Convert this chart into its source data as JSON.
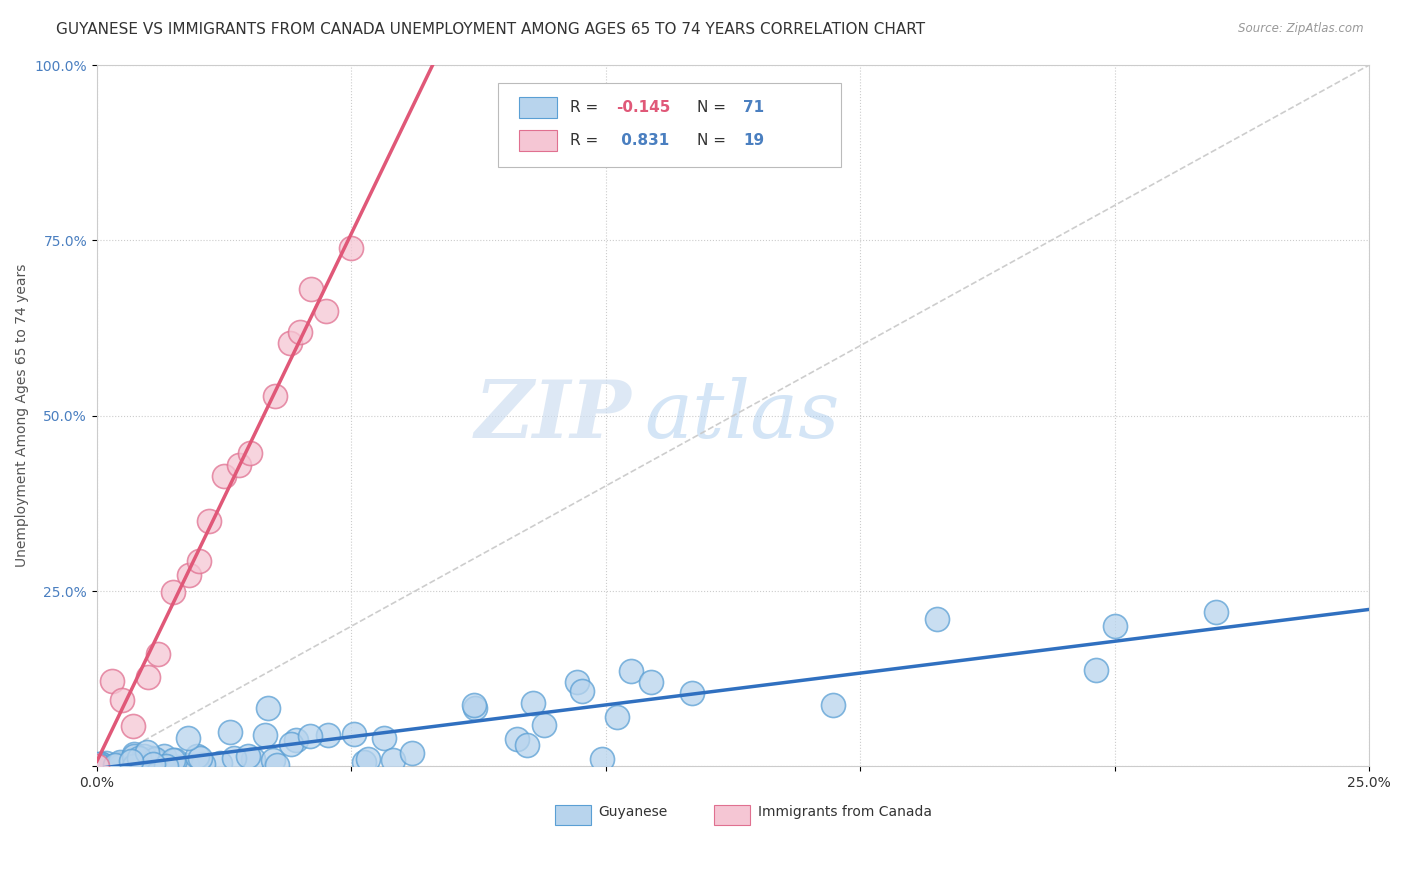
{
  "title": "GUYANESE VS IMMIGRANTS FROM CANADA UNEMPLOYMENT AMONG AGES 65 TO 74 YEARS CORRELATION CHART",
  "source": "Source: ZipAtlas.com",
  "ylabel": "Unemployment Among Ages 65 to 74 years",
  "xlim": [
    0.0,
    0.25
  ],
  "ylim": [
    0.0,
    1.0
  ],
  "xtick_vals": [
    0.0,
    0.05,
    0.1,
    0.15,
    0.2,
    0.25
  ],
  "xticklabels": [
    "0.0%",
    "",
    "",
    "",
    "",
    "25.0%"
  ],
  "ytick_vals": [
    0.0,
    0.25,
    0.5,
    0.75,
    1.0
  ],
  "yticklabels": [
    "",
    "25.0%",
    "50.0%",
    "75.0%",
    "100.0%"
  ],
  "guyanese_fill": "#b8d4ed",
  "guyanese_edge": "#5a9fd4",
  "canada_fill": "#f5c6d4",
  "canada_edge": "#e07090",
  "guyanese_line_color": "#3070c0",
  "canada_line_color": "#e05878",
  "ref_line_color": "#c8c8c8",
  "R_guyanese": -0.145,
  "N_guyanese": 71,
  "R_canada": 0.831,
  "N_canada": 19,
  "legend_label_guyanese": "Guyanese",
  "legend_label_canada": "Immigrants from Canada",
  "watermark_zip": "ZIP",
  "watermark_atlas": "atlas",
  "title_fontsize": 11,
  "axis_label_fontsize": 10,
  "tick_fontsize": 10,
  "legend_text_color": "#4a7fc0",
  "r_value_color_guyanese": "#e05878",
  "r_value_color_canada": "#4a7fc0"
}
